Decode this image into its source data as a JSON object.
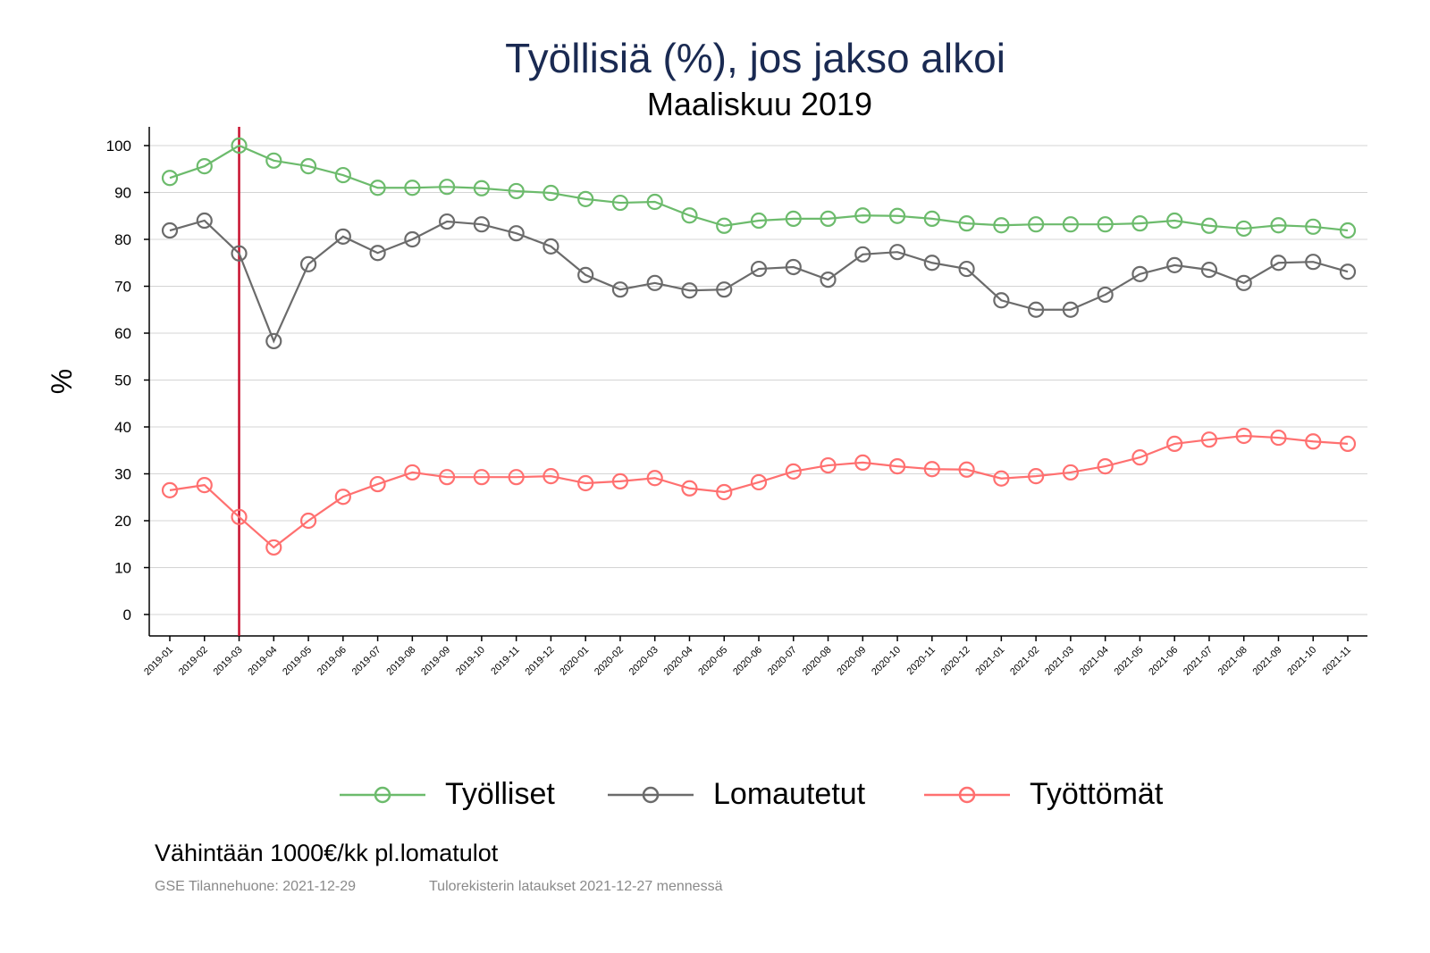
{
  "chart_data": {
    "type": "line",
    "title": "Työllisiä (%), jos jakso alkoi",
    "subtitle": "Maaliskuu 2019",
    "xlabel": "",
    "ylabel": "%",
    "ylim": [
      -4,
      104
    ],
    "yticks": [
      0,
      10,
      20,
      30,
      40,
      50,
      60,
      70,
      80,
      90,
      100
    ],
    "grid": true,
    "legend_position": "bottom",
    "reference_line": {
      "category": "2019-03",
      "color": "#c8102e"
    },
    "categories": [
      "2019-01",
      "2019-02",
      "2019-03",
      "2019-04",
      "2019-05",
      "2019-06",
      "2019-07",
      "2019-08",
      "2019-09",
      "2019-10",
      "2019-11",
      "2019-12",
      "2020-01",
      "2020-02",
      "2020-03",
      "2020-04",
      "2020-05",
      "2020-06",
      "2020-07",
      "2020-08",
      "2020-09",
      "2020-10",
      "2020-11",
      "2020-12",
      "2021-01",
      "2021-02",
      "2021-03",
      "2021-04",
      "2021-05",
      "2021-06",
      "2021-07",
      "2021-08",
      "2021-09",
      "2021-10",
      "2021-11"
    ],
    "series": [
      {
        "name": "Työlliset",
        "color": "#6cbb6c",
        "values": [
          93.1,
          95.6,
          100,
          96.8,
          95.6,
          93.7,
          91.0,
          91.0,
          91.2,
          90.9,
          90.3,
          89.9,
          88.6,
          87.8,
          88.0,
          85.1,
          82.9,
          84.0,
          84.4,
          84.4,
          85.1,
          85.0,
          84.4,
          83.4,
          83.0,
          83.2,
          83.2,
          83.2,
          83.4,
          84.0,
          82.9,
          82.3,
          83.0,
          82.7,
          81.9
        ]
      },
      {
        "name": "Lomautetut",
        "color": "#6b6b6b",
        "values": [
          81.9,
          84.0,
          77.0,
          58.3,
          74.7,
          80.6,
          77.1,
          80.0,
          83.8,
          83.2,
          81.3,
          78.5,
          72.4,
          69.3,
          70.7,
          69.1,
          69.3,
          73.7,
          74.1,
          71.4,
          76.8,
          77.3,
          75.0,
          73.7,
          67.0,
          65.0,
          65.0,
          68.2,
          72.6,
          74.5,
          73.5,
          70.7,
          75.0,
          75.2,
          73.1
        ]
      },
      {
        "name": "Työttömät",
        "color": "#ff7070",
        "values": [
          26.5,
          27.6,
          20.8,
          14.3,
          20.0,
          25.1,
          27.8,
          30.3,
          29.3,
          29.3,
          29.3,
          29.5,
          28.0,
          28.4,
          29.1,
          26.9,
          26.1,
          28.2,
          30.5,
          31.8,
          32.4,
          31.6,
          31.0,
          30.9,
          29.0,
          29.5,
          30.3,
          31.6,
          33.5,
          36.4,
          37.3,
          38.1,
          37.7,
          36.9,
          36.4
        ]
      }
    ]
  },
  "note": "Vähintään 1000€/kk pl.lomatulot",
  "source_left": "GSE Tilannehuone: 2021-12-29",
  "source_right": "Tulorekisterin lataukset 2021-12-27 mennessä"
}
